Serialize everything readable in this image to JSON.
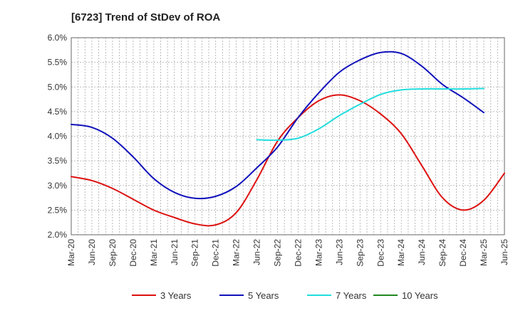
{
  "chart_data": {
    "type": "line",
    "title": "[6723]  Trend of StDev of ROA",
    "xlabel": "",
    "ylabel": "",
    "ylim": [
      2.0,
      6.0
    ],
    "y_ticks": [
      2.0,
      2.5,
      3.0,
      3.5,
      4.0,
      4.5,
      5.0,
      5.5,
      6.0
    ],
    "y_tick_labels": [
      "2.0%",
      "2.5%",
      "3.0%",
      "3.5%",
      "4.0%",
      "4.5%",
      "5.0%",
      "5.5%",
      "6.0%"
    ],
    "x_tick_labels": [
      "Mar-20",
      "Jun-20",
      "Sep-20",
      "Dec-20",
      "Mar-21",
      "Jun-21",
      "Sep-21",
      "Dec-21",
      "Mar-22",
      "Jun-22",
      "Sep-22",
      "Dec-22",
      "Mar-23",
      "Jun-23",
      "Sep-23",
      "Dec-23",
      "Mar-24",
      "Jun-24",
      "Sep-24",
      "Dec-24",
      "Mar-25",
      "Jun-25"
    ],
    "grid": true,
    "legend_position": "bottom",
    "series": [
      {
        "name": "3 Years",
        "color": "#dd1111",
        "values": [
          3.18,
          3.1,
          2.94,
          2.72,
          2.5,
          2.35,
          2.22,
          2.2,
          2.45,
          3.12,
          3.9,
          4.38,
          4.72,
          4.84,
          4.72,
          4.45,
          4.05,
          3.4,
          2.75,
          2.5,
          2.7,
          3.25
        ]
      },
      {
        "name": "5 Years",
        "color": "#1111bb",
        "values": [
          4.24,
          4.18,
          3.96,
          3.58,
          3.14,
          2.86,
          2.74,
          2.78,
          2.98,
          3.36,
          3.78,
          4.38,
          4.88,
          5.3,
          5.55,
          5.7,
          5.68,
          5.42,
          5.05,
          4.78,
          4.48,
          null
        ]
      },
      {
        "name": "7 Years",
        "color": "#22dddd",
        "values": [
          null,
          null,
          null,
          null,
          null,
          null,
          null,
          null,
          null,
          3.93,
          3.92,
          3.96,
          4.15,
          4.42,
          4.65,
          4.85,
          4.94,
          4.96,
          4.96,
          4.96,
          4.97,
          null
        ]
      },
      {
        "name": "10 Years",
        "color": "#228822",
        "values": [
          null,
          null,
          null,
          null,
          null,
          null,
          null,
          null,
          null,
          null,
          null,
          null,
          null,
          null,
          null,
          null,
          null,
          null,
          null,
          null,
          null,
          null
        ]
      }
    ]
  }
}
